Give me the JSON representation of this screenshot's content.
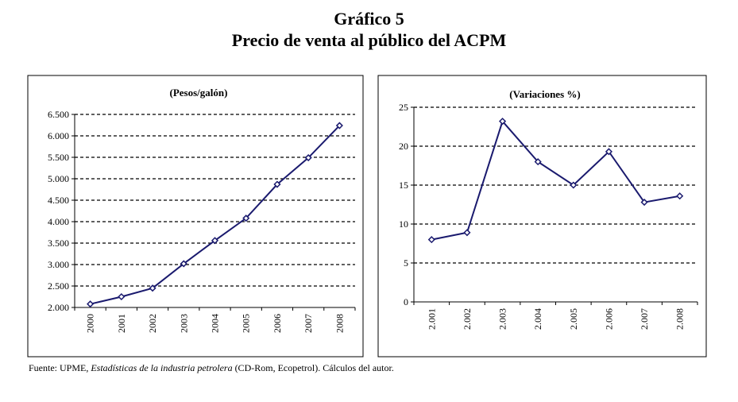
{
  "header": {
    "title": "Gráfico 5",
    "subtitle": "Precio de venta al público del ACPM"
  },
  "source": {
    "prefix": "Fuente: UPME,",
    "italic": "Estadísticas de la industria petrolera",
    "suffix": "(CD-Rom, Ecopetrol). Cálculos del autor."
  },
  "colors": {
    "series": "#1a1a6e",
    "grid": "#000000",
    "frame": "#000000"
  },
  "chart_data": [
    {
      "type": "line",
      "title": "(Pesos/galón)",
      "categories": [
        "2000",
        "2001",
        "2002",
        "2003",
        "2004",
        "2005",
        "2006",
        "2007",
        "2008"
      ],
      "values": [
        2080,
        2250,
        2450,
        3020,
        3560,
        4080,
        4870,
        5490,
        6240
      ],
      "yticks": [
        2000,
        2500,
        3000,
        3500,
        4000,
        4500,
        5000,
        5500,
        6000,
        6500
      ],
      "ytick_labels": [
        "2.000",
        "2.500",
        "3.000",
        "3.500",
        "4.000",
        "4.500",
        "5.000",
        "5.500",
        "6.000",
        "6.500"
      ],
      "ylim": [
        2000,
        6500
      ],
      "grid": "dashed-horizontal"
    },
    {
      "type": "line",
      "title": "(Variaciones %)",
      "categories": [
        "2.001",
        "2.002",
        "2.003",
        "2.004",
        "2.005",
        "2.006",
        "2.007",
        "2.008"
      ],
      "values": [
        8.0,
        8.9,
        23.2,
        18.0,
        15.0,
        19.3,
        12.8,
        13.6
      ],
      "yticks": [
        0,
        5,
        10,
        15,
        20,
        25
      ],
      "ytick_labels": [
        "0",
        "5",
        "10",
        "15",
        "20",
        "25"
      ],
      "ylim": [
        0,
        25
      ],
      "grid": "dashed-horizontal"
    }
  ]
}
